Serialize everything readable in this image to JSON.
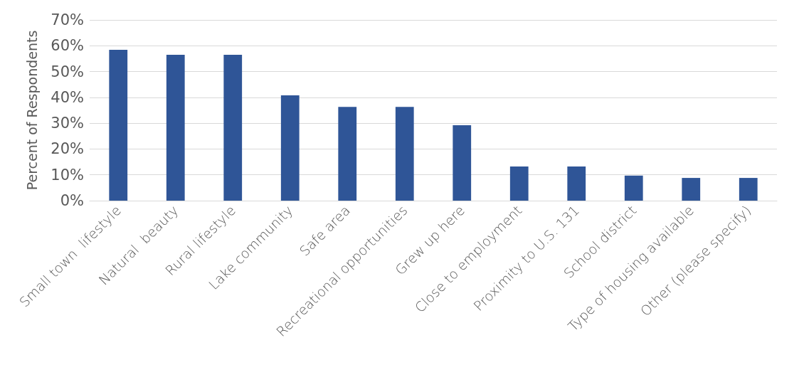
{
  "chart_data": {
    "type": "bar",
    "ylabel": "Percent of Respondents",
    "categories": [
      "Small town  lifestyle",
      "Natural  beauty",
      "Rural lifestyle",
      "Lake community",
      "Safe area",
      "Recreational opportunities",
      "Grew up here",
      "Close to employment",
      "Proximity to U.S. 131",
      "School district",
      "Type of housing available",
      "Other (please specify)"
    ],
    "values": [
      58.4,
      56.5,
      56.5,
      40.8,
      36.3,
      36.3,
      29.2,
      13.2,
      13.2,
      9.7,
      8.8,
      8.8
    ],
    "color": "#2f5597",
    "ylim": [
      0,
      70
    ],
    "yticks": [
      {
        "value": 0,
        "label": "0%"
      },
      {
        "value": 10,
        "label": "10%"
      },
      {
        "value": 20,
        "label": "20%"
      },
      {
        "value": 30,
        "label": "30%"
      },
      {
        "value": 40,
        "label": "40%"
      },
      {
        "value": 50,
        "label": "50%"
      },
      {
        "value": 60,
        "label": "60%"
      },
      {
        "value": 70,
        "label": "70%"
      }
    ],
    "grid": true
  }
}
